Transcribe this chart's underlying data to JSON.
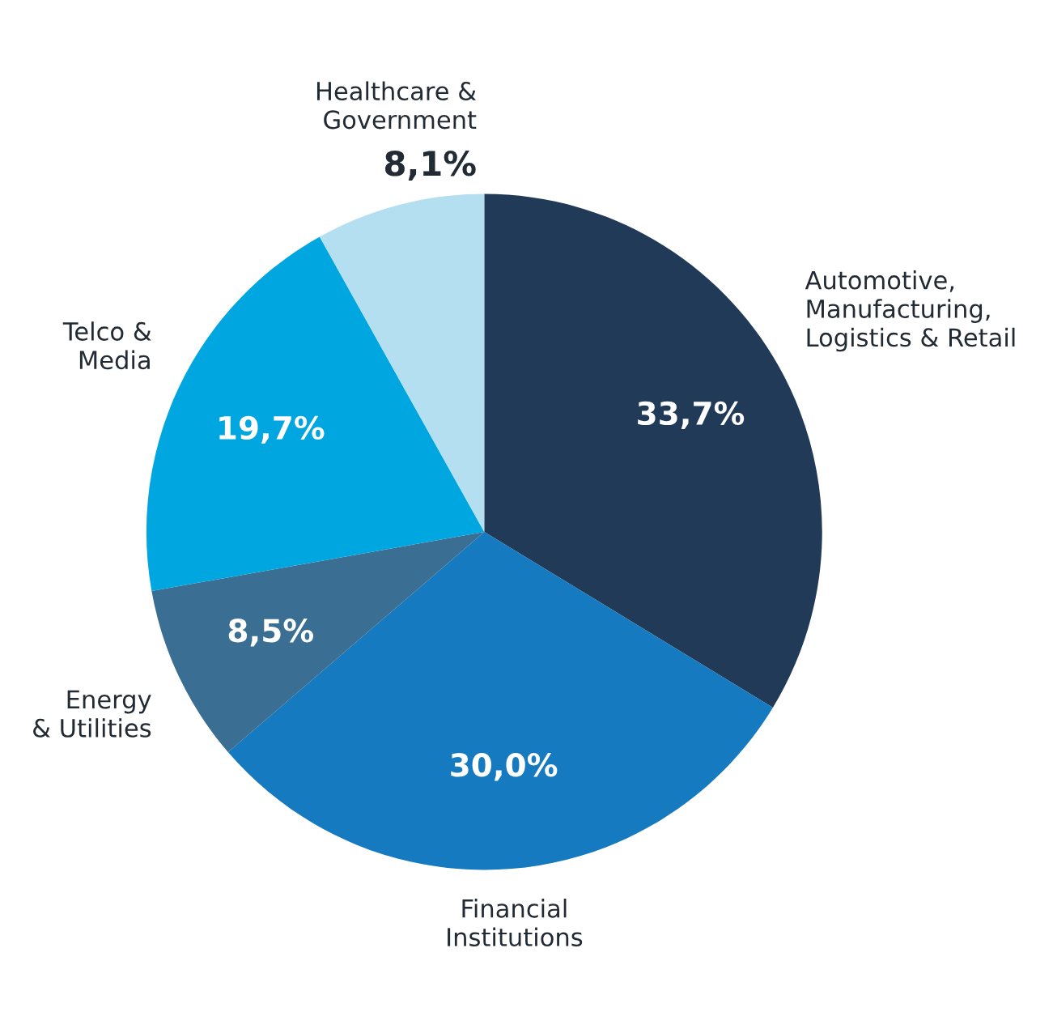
{
  "chart_data": {
    "type": "pie",
    "categories": [
      "Automotive,\nManufacturing,\nLogistics & Retail",
      "Financial\nInstitutions",
      "Energy\n& Utilities",
      "Telco &\nMedia",
      "Healthcare &\nGovernment"
    ],
    "values": [
      33.7,
      30.0,
      8.5,
      19.7,
      8.1
    ],
    "value_labels": [
      "33,7%",
      "30,0%",
      "8,5%",
      "19,7%",
      "8,1%"
    ],
    "colors": [
      "#213a58",
      "#157abf",
      "#3a6e93",
      "#00a6e0",
      "#b3dff0"
    ]
  }
}
